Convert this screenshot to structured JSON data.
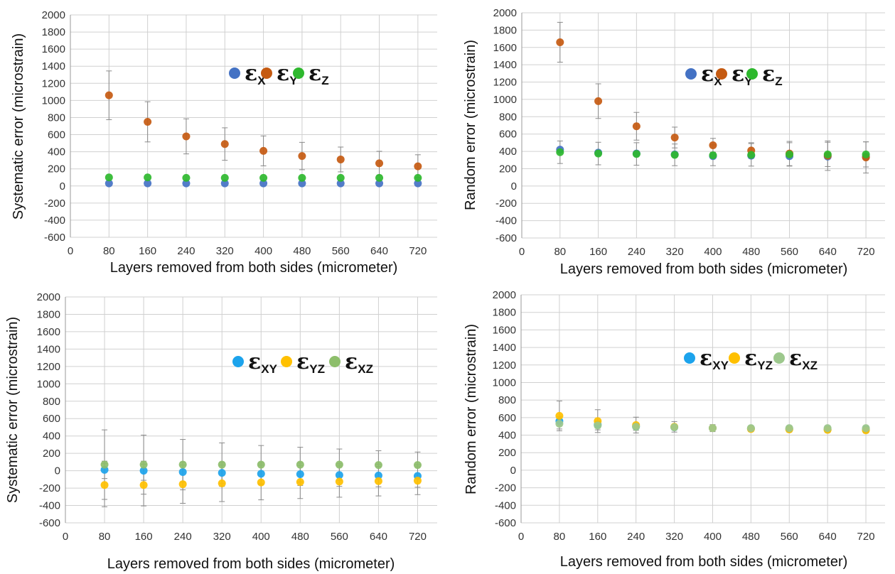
{
  "chart_data": [
    {
      "type": "scatter",
      "ylabel": "Systematic error (microstrain)",
      "xlabel": "Layers removed from both sides (micrometer)",
      "xlim": [
        0,
        760
      ],
      "ylim": [
        -600,
        2000
      ],
      "xticks": [
        0,
        80,
        160,
        240,
        320,
        400,
        480,
        560,
        640,
        720
      ],
      "yticks": [
        -600,
        -400,
        -200,
        0,
        200,
        400,
        600,
        800,
        1000,
        1200,
        1400,
        1600,
        1800,
        2000
      ],
      "grid": true,
      "legend_position": "top-center",
      "x": [
        80,
        160,
        240,
        320,
        400,
        480,
        560,
        640,
        720
      ],
      "series": [
        {
          "name": "εX",
          "symbol": "ε",
          "sub": "X",
          "color": "#4472C4",
          "y": [
            30,
            30,
            30,
            30,
            30,
            30,
            30,
            30,
            30
          ],
          "err": [
            0,
            0,
            0,
            0,
            0,
            0,
            0,
            0,
            0
          ]
        },
        {
          "name": "εY",
          "symbol": "ε",
          "sub": "Y",
          "color": "#C55A11",
          "y": [
            1060,
            750,
            580,
            490,
            410,
            350,
            310,
            265,
            230
          ],
          "err": [
            285,
            235,
            205,
            190,
            175,
            160,
            145,
            140,
            135
          ]
        },
        {
          "name": "εZ",
          "symbol": "ε",
          "sub": "Z",
          "color": "#2EB82E",
          "y": [
            100,
            100,
            95,
            95,
            95,
            95,
            95,
            95,
            95
          ],
          "err": [
            0,
            0,
            0,
            0,
            0,
            0,
            0,
            0,
            0
          ]
        }
      ]
    },
    {
      "type": "scatter",
      "ylabel": "Random error (microstrain)",
      "xlabel": "Layers removed from both sides (micrometer)",
      "xlim": [
        0,
        760
      ],
      "ylim": [
        -600,
        2000
      ],
      "xticks": [
        0,
        80,
        160,
        240,
        320,
        400,
        480,
        560,
        640,
        720
      ],
      "yticks": [
        -600,
        -400,
        -200,
        0,
        200,
        400,
        600,
        800,
        1000,
        1200,
        1400,
        1600,
        1800,
        2000
      ],
      "grid": true,
      "legend_position": "top-center",
      "x": [
        80,
        160,
        240,
        320,
        400,
        480,
        560,
        640,
        720
      ],
      "series": [
        {
          "name": "εX",
          "symbol": "ε",
          "sub": "X",
          "color": "#4472C4",
          "y": [
            420,
            385,
            375,
            365,
            345,
            350,
            345,
            340,
            340
          ],
          "err": [
            0,
            0,
            0,
            0,
            0,
            0,
            0,
            0,
            0
          ]
        },
        {
          "name": "εY",
          "symbol": "ε",
          "sub": "Y",
          "color": "#C55A11",
          "y": [
            1660,
            980,
            690,
            560,
            470,
            410,
            375,
            350,
            330
          ],
          "err": [
            230,
            200,
            160,
            120,
            80,
            90,
            140,
            170,
            180
          ]
        },
        {
          "name": "εZ",
          "symbol": "ε",
          "sub": "Z",
          "color": "#2EB82E",
          "y": [
            390,
            375,
            370,
            360,
            355,
            360,
            365,
            365,
            365
          ],
          "err": [
            130,
            130,
            130,
            125,
            120,
            130,
            135,
            140,
            145
          ]
        }
      ]
    },
    {
      "type": "scatter",
      "ylabel": "Systematic error (microstrain)",
      "xlabel": "Layers removed from both sides (micrometer)",
      "xlim": [
        0,
        760
      ],
      "ylim": [
        -600,
        2000
      ],
      "xticks": [
        0,
        80,
        160,
        240,
        320,
        400,
        480,
        560,
        640,
        720
      ],
      "yticks": [
        -600,
        -400,
        -200,
        0,
        200,
        400,
        600,
        800,
        1000,
        1200,
        1400,
        1600,
        1800,
        2000
      ],
      "grid": true,
      "legend_position": "top-center",
      "x": [
        80,
        160,
        240,
        320,
        400,
        480,
        560,
        640,
        720
      ],
      "series": [
        {
          "name": "εXY",
          "symbol": "ε",
          "sub": "XY",
          "color": "#1CA3EC",
          "y": [
            10,
            0,
            -15,
            -25,
            -35,
            -40,
            -50,
            -55,
            -60
          ],
          "err": [
            100,
            110,
            115,
            120,
            125,
            130,
            130,
            130,
            130
          ]
        },
        {
          "name": "εYZ",
          "symbol": "ε",
          "sub": "YZ",
          "color": "#FFC000",
          "y": [
            -165,
            -165,
            -155,
            -145,
            -135,
            -130,
            -125,
            -120,
            -115
          ],
          "err": [
            250,
            240,
            220,
            210,
            200,
            190,
            180,
            170,
            160
          ]
        },
        {
          "name": "εXZ",
          "symbol": "ε",
          "sub": "XZ",
          "color": "#8DBE6B",
          "y": [
            70,
            70,
            70,
            70,
            70,
            70,
            70,
            65,
            65
          ],
          "err": [
            400,
            340,
            290,
            250,
            220,
            200,
            180,
            165,
            150
          ]
        }
      ]
    },
    {
      "type": "scatter",
      "ylabel": "Random error (microstrain)",
      "xlabel": "Layers removed from both sides (micrometer)",
      "xlim": [
        0,
        760
      ],
      "ylim": [
        -600,
        2000
      ],
      "xticks": [
        0,
        80,
        160,
        240,
        320,
        400,
        480,
        560,
        640,
        720
      ],
      "yticks": [
        -600,
        -400,
        -200,
        0,
        200,
        400,
        600,
        800,
        1000,
        1200,
        1400,
        1600,
        1800,
        2000
      ],
      "grid": true,
      "legend_position": "top-center",
      "x": [
        80,
        160,
        240,
        320,
        400,
        480,
        560,
        640,
        720
      ],
      "series": [
        {
          "name": "εXY",
          "symbol": "ε",
          "sub": "XY",
          "color": "#1CA3EC",
          "y": [
            560,
            520,
            500,
            490,
            480,
            475,
            470,
            465,
            465
          ],
          "err": [
            50,
            40,
            30,
            20,
            15,
            15,
            15,
            15,
            15
          ]
        },
        {
          "name": "εYZ",
          "symbol": "ε",
          "sub": "YZ",
          "color": "#FFC000",
          "y": [
            620,
            560,
            515,
            495,
            480,
            470,
            465,
            460,
            455
          ],
          "err": [
            170,
            130,
            90,
            60,
            40,
            30,
            30,
            30,
            30
          ]
        },
        {
          "name": "εXZ",
          "symbol": "ε",
          "sub": "XZ",
          "color": "#9DC88D",
          "y": [
            530,
            510,
            495,
            490,
            480,
            480,
            480,
            480,
            480
          ],
          "err": [
            60,
            50,
            40,
            30,
            25,
            25,
            25,
            25,
            25
          ]
        }
      ]
    }
  ]
}
